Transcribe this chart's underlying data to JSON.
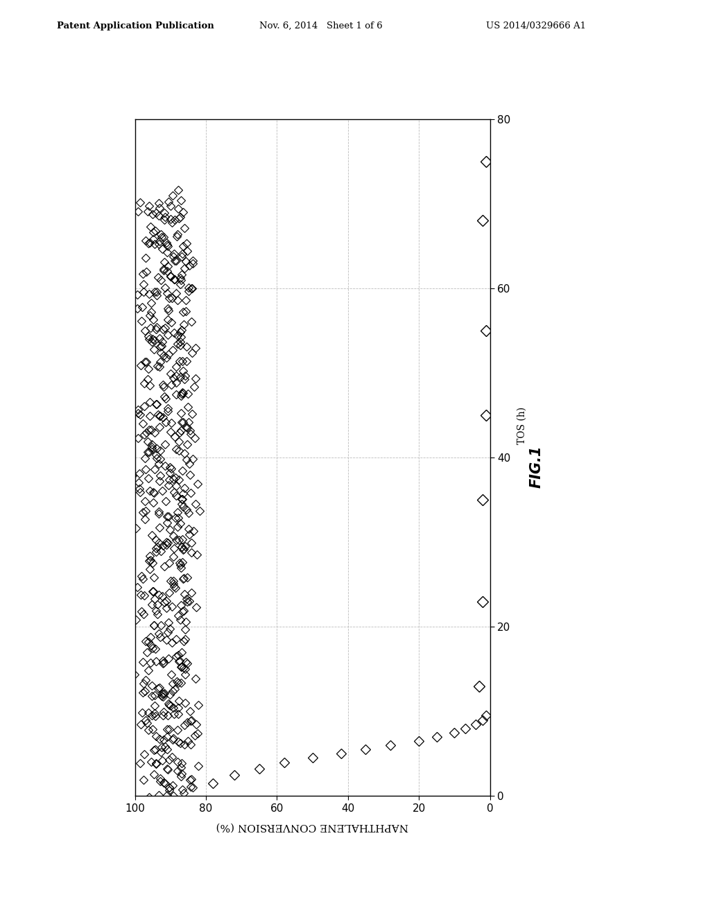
{
  "header_left": "Patent Application Publication",
  "header_center": "Nov. 6, 2014   Sheet 1 of 6",
  "header_right": "US 2014/0329666 A1",
  "fig_label": "FIG.1",
  "xlabel": "NAPHTHALENE CONVERSION (%)",
  "ylabel": "TOS (h)",
  "background_color": "#ffffff",
  "data_color": "#000000",
  "xlim_left": 100,
  "xlim_right": 0,
  "ylim_bottom": 0,
  "ylim_top": 80,
  "xticks": [
    100,
    80,
    60,
    40,
    20,
    0
  ],
  "yticks": [
    0,
    20,
    40,
    60,
    80
  ],
  "marker_size": 6,
  "cluster_seed": 42
}
